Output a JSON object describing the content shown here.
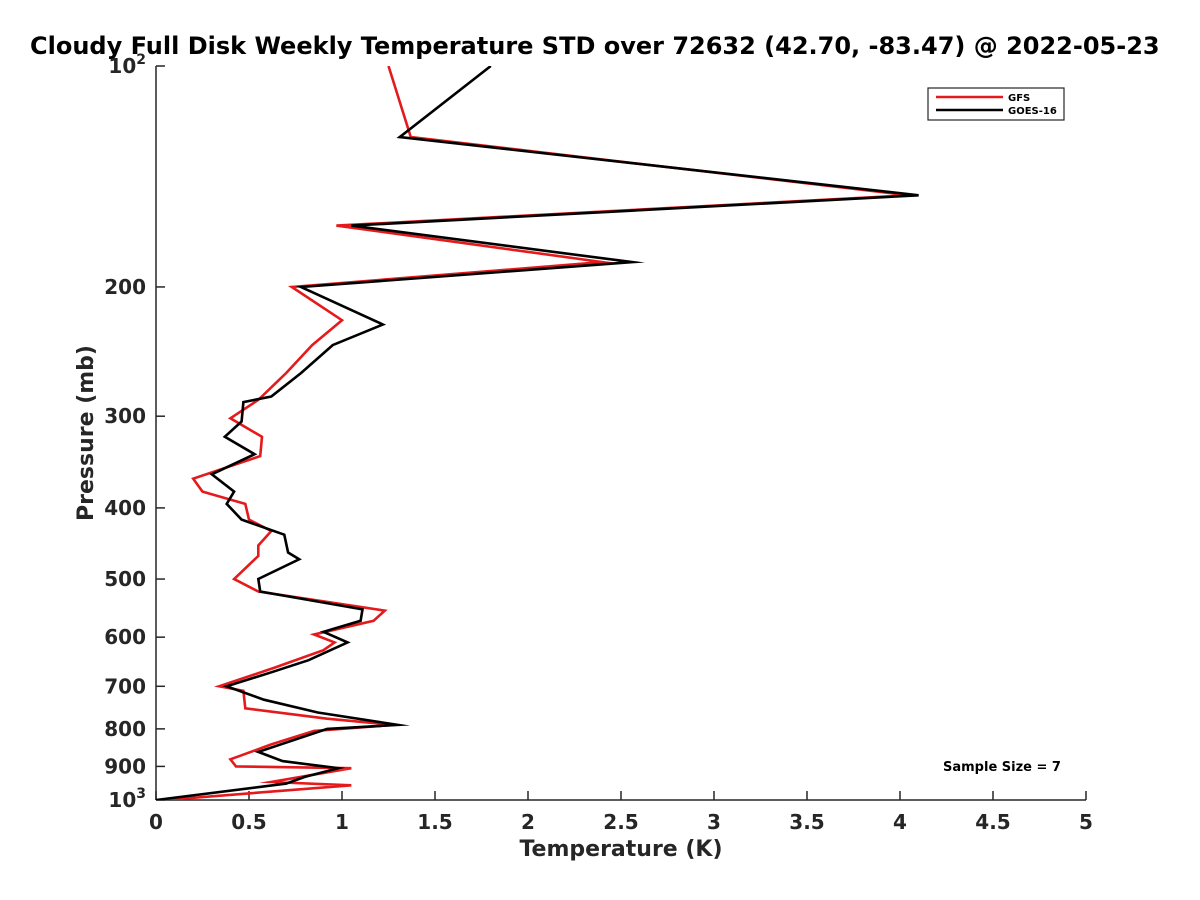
{
  "chart_data": {
    "type": "line",
    "title": "Cloudy Full Disk Weekly Temperature STD over 72632 (42.70, -83.47) @ 2022-05-23",
    "xlabel": "Temperature (K)",
    "ylabel": "Pressure (mb)",
    "xlim": [
      0,
      5
    ],
    "ylim": [
      100,
      1000
    ],
    "y_scale": "log",
    "y_reversed": true,
    "x_ticks": [
      0,
      0.5,
      1,
      1.5,
      2,
      2.5,
      3,
      3.5,
      4,
      4.5,
      5
    ],
    "x_tick_labels": [
      "0",
      "0.5",
      "1",
      "1.5",
      "2",
      "2.5",
      "3",
      "3.5",
      "4",
      "4.5",
      "5"
    ],
    "y_ticks": [
      100,
      200,
      300,
      400,
      500,
      600,
      700,
      800,
      900,
      1000
    ],
    "y_tick_labels": [
      {
        "base": "10",
        "exp": "2"
      },
      {
        "base": "200"
      },
      {
        "base": "300"
      },
      {
        "base": "400"
      },
      {
        "base": "500"
      },
      {
        "base": "600"
      },
      {
        "base": "700"
      },
      {
        "base": "800"
      },
      {
        "base": "900"
      },
      {
        "base": "10",
        "exp": "3"
      }
    ],
    "grid": false,
    "legend_position": "top-right",
    "annotation": "Sample Size = 7",
    "series": [
      {
        "name": "GFS",
        "color": "#e41a1c",
        "points": [
          [
            1.25,
            100
          ],
          [
            1.37,
            125
          ],
          [
            4.05,
            150
          ],
          [
            0.97,
            165
          ],
          [
            2.4,
            185
          ],
          [
            0.73,
            200
          ],
          [
            1.0,
            222
          ],
          [
            0.84,
            240
          ],
          [
            0.7,
            262
          ],
          [
            0.55,
            285
          ],
          [
            0.4,
            302
          ],
          [
            0.57,
            320
          ],
          [
            0.56,
            340
          ],
          [
            0.2,
            365
          ],
          [
            0.25,
            380
          ],
          [
            0.48,
            395
          ],
          [
            0.5,
            415
          ],
          [
            0.62,
            430
          ],
          [
            0.55,
            450
          ],
          [
            0.55,
            465
          ],
          [
            0.42,
            500
          ],
          [
            0.55,
            520
          ],
          [
            1.23,
            552
          ],
          [
            1.17,
            570
          ],
          [
            0.85,
            595
          ],
          [
            0.96,
            610
          ],
          [
            0.9,
            625
          ],
          [
            0.64,
            660
          ],
          [
            0.34,
            700
          ],
          [
            0.47,
            710
          ],
          [
            0.48,
            750
          ],
          [
            0.92,
            775
          ],
          [
            1.28,
            790
          ],
          [
            0.85,
            805
          ],
          [
            0.62,
            840
          ],
          [
            0.4,
            880
          ],
          [
            0.43,
            900
          ],
          [
            1.05,
            905
          ],
          [
            0.62,
            945
          ],
          [
            1.05,
            955
          ],
          [
            0.05,
            1000
          ]
        ]
      },
      {
        "name": "GOES-16",
        "color": "#000000",
        "points": [
          [
            1.8,
            100
          ],
          [
            1.31,
            125
          ],
          [
            4.1,
            150
          ],
          [
            1.05,
            165
          ],
          [
            2.56,
            185
          ],
          [
            0.78,
            200
          ],
          [
            1.22,
            225
          ],
          [
            0.95,
            240
          ],
          [
            0.78,
            262
          ],
          [
            0.62,
            282
          ],
          [
            0.47,
            287
          ],
          [
            0.46,
            305
          ],
          [
            0.37,
            320
          ],
          [
            0.53,
            338
          ],
          [
            0.3,
            360
          ],
          [
            0.42,
            380
          ],
          [
            0.38,
            395
          ],
          [
            0.46,
            415
          ],
          [
            0.69,
            435
          ],
          [
            0.71,
            460
          ],
          [
            0.77,
            470
          ],
          [
            0.55,
            500
          ],
          [
            0.56,
            520
          ],
          [
            1.11,
            550
          ],
          [
            1.1,
            570
          ],
          [
            0.9,
            590
          ],
          [
            1.03,
            610
          ],
          [
            0.82,
            645
          ],
          [
            0.62,
            670
          ],
          [
            0.38,
            700
          ],
          [
            0.58,
            730
          ],
          [
            0.87,
            760
          ],
          [
            1.3,
            790
          ],
          [
            0.92,
            800
          ],
          [
            0.55,
            860
          ],
          [
            0.68,
            885
          ],
          [
            0.98,
            905
          ],
          [
            0.8,
            930
          ],
          [
            0.7,
            950
          ],
          [
            0.0,
            1000
          ]
        ]
      }
    ]
  }
}
